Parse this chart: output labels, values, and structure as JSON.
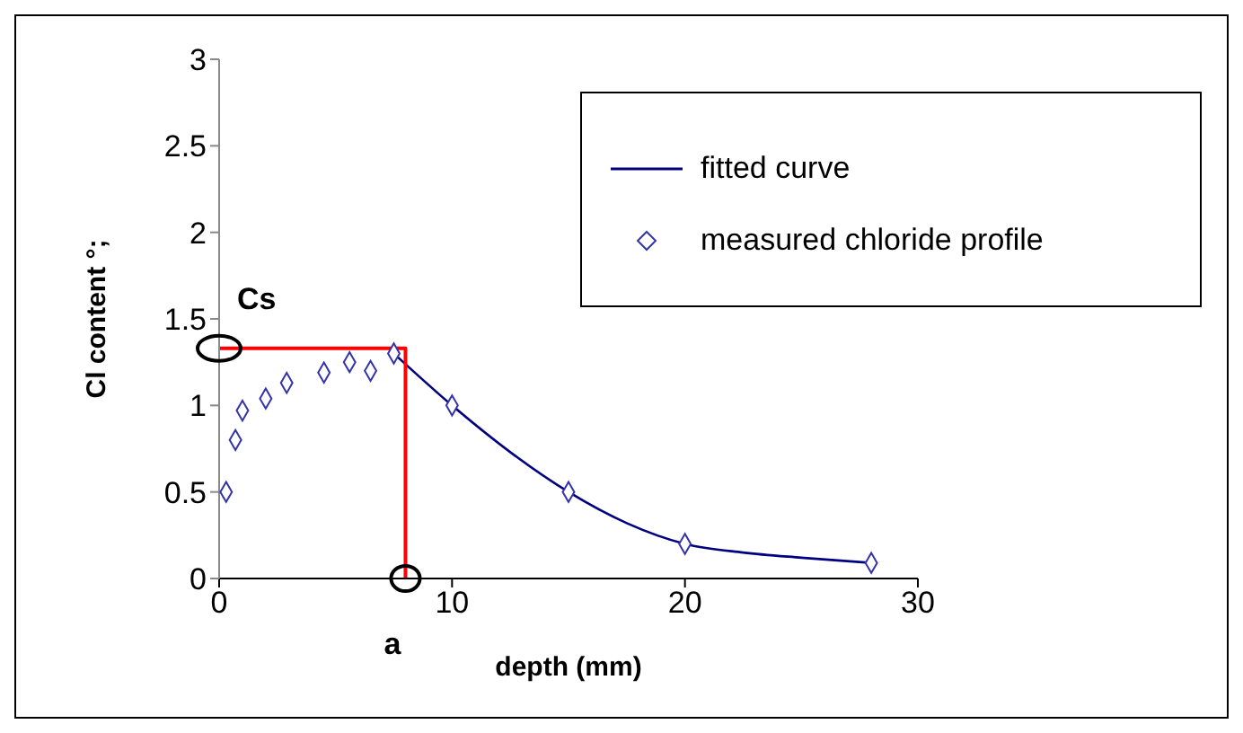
{
  "chart_data": {
    "type": "line",
    "xlabel": "depth (mm)",
    "ylabel": "Cl content °;",
    "xlim": [
      0,
      30
    ],
    "xticks": [
      0,
      10,
      20,
      30
    ],
    "ylim": [
      0,
      3
    ],
    "yticks": [
      0,
      0.5,
      1,
      1.5,
      2,
      2.5,
      3
    ],
    "grid": false,
    "legend": "top right",
    "line_style": "solid",
    "series": [
      {
        "name": "fitted curve",
        "color": "#000080",
        "marker": "none",
        "x": [
          7.5,
          10,
          12.5,
          15,
          17.5,
          20,
          22.5,
          25,
          28
        ],
        "values": [
          1.3,
          1.0,
          0.73,
          0.5,
          0.32,
          0.2,
          0.15,
          0.12,
          0.09
        ]
      },
      {
        "name": "measured chloride profile",
        "type": "scatter",
        "color": "#3333aa",
        "marker": "diamond",
        "x": [
          0.3,
          0.7,
          1,
          2,
          2.9,
          4.5,
          5.6,
          6.5,
          7.5,
          10,
          15,
          20,
          28
        ],
        "values": [
          0.5,
          0.8,
          0.97,
          1.04,
          1.13,
          1.19,
          1.25,
          1.2,
          1.3,
          1.0,
          0.5,
          0.2,
          0.09
        ]
      },
      {
        "color": "#ff0000",
        "x": [
          0,
          8,
          8
        ],
        "values": [
          1.33,
          1.33,
          0
        ]
      }
    ],
    "annotations": [
      {
        "text": "Cs",
        "x": 0,
        "y": 1.33
      },
      {
        "text": "a",
        "x": 8,
        "y": 0
      }
    ]
  }
}
